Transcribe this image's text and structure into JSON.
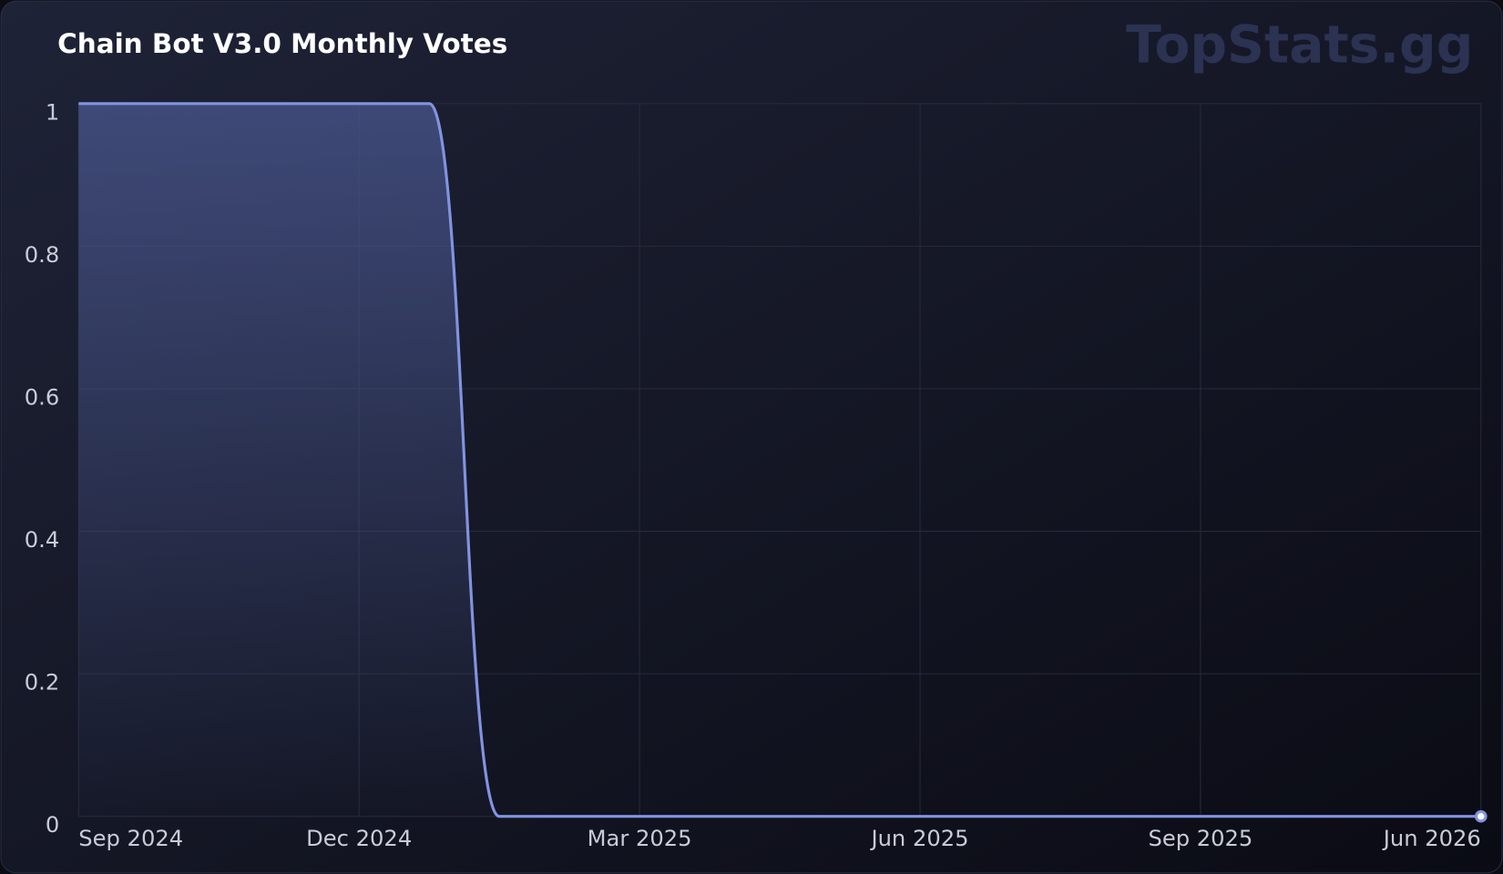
{
  "chart_data": {
    "type": "line",
    "title": "Chain Bot V3.0 Monthly Votes",
    "watermark": "TopStats.gg",
    "categories": [
      "Sep 2024",
      null,
      null,
      null,
      "Dec 2024",
      null,
      null,
      null,
      "Mar 2025",
      null,
      null,
      null,
      "Jun 2025",
      null,
      null,
      null,
      "Sep 2025",
      null,
      null,
      null,
      "Jun 2026"
    ],
    "values": [
      1,
      1,
      1,
      1,
      1,
      1,
      0,
      0,
      0,
      0,
      0,
      0,
      0,
      0,
      0,
      0,
      0,
      0,
      0,
      0,
      0
    ],
    "color": "#8293e0",
    "ylim": [
      0,
      1
    ],
    "yticks": [
      0,
      0.2,
      0.4,
      0.6,
      0.8,
      1
    ],
    "grid": true
  }
}
